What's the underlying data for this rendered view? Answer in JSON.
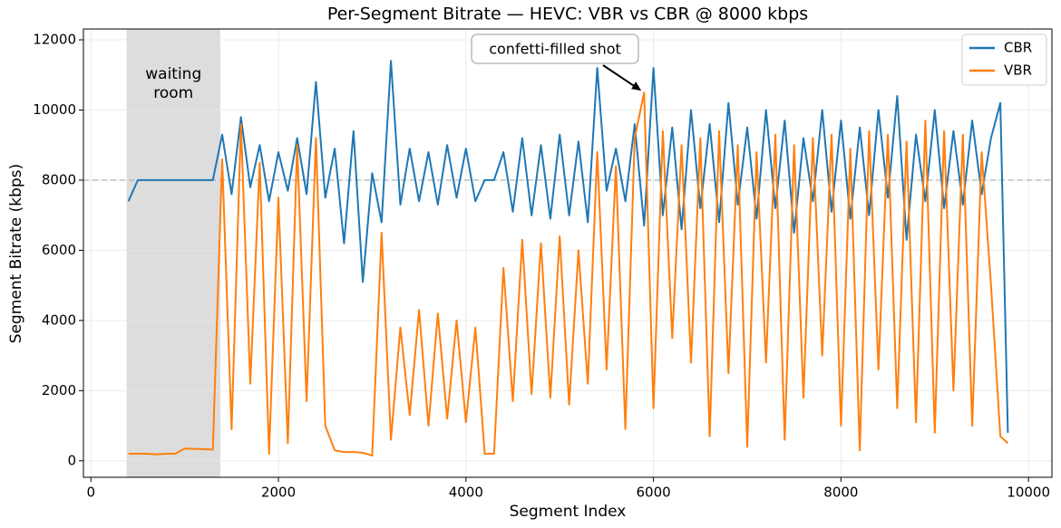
{
  "chart_data": {
    "type": "line",
    "title": "Per-Segment Bitrate — HEVC: VBR vs CBR @ 8000 kbps",
    "xlabel": "Segment Index",
    "ylabel": "Segment Bitrate (kbps)",
    "x": [
      400,
      500,
      600,
      700,
      800,
      900,
      1000,
      1100,
      1200,
      1300,
      1400,
      1500,
      1600,
      1700,
      1800,
      1900,
      2000,
      2100,
      2200,
      2300,
      2400,
      2500,
      2600,
      2700,
      2800,
      2900,
      3000,
      3100,
      3200,
      3300,
      3400,
      3500,
      3600,
      3700,
      3800,
      3900,
      4000,
      4100,
      4200,
      4300,
      4400,
      4500,
      4600,
      4700,
      4800,
      4900,
      5000,
      5100,
      5200,
      5300,
      5400,
      5500,
      5600,
      5700,
      5800,
      5900,
      6000,
      6100,
      6200,
      6300,
      6400,
      6500,
      6600,
      6700,
      6800,
      6900,
      7000,
      7100,
      7200,
      7300,
      7400,
      7500,
      7600,
      7700,
      7800,
      7900,
      8000,
      8100,
      8200,
      8300,
      8400,
      8500,
      8600,
      8700,
      8800,
      8900,
      9000,
      9100,
      9200,
      9300,
      9400,
      9500,
      9600,
      9700,
      9780
    ],
    "series": [
      {
        "name": "CBR",
        "color": "#1f77b4",
        "values": [
          7400,
          8000,
          8000,
          8000,
          8000,
          8000,
          8000,
          8000,
          8000,
          8000,
          9300,
          7600,
          9800,
          7800,
          9000,
          7400,
          8800,
          7700,
          9200,
          7600,
          10800,
          7500,
          8900,
          6200,
          9400,
          5100,
          8200,
          6800,
          11400,
          7300,
          8900,
          7400,
          8800,
          7300,
          9000,
          7500,
          8900,
          7400,
          8000,
          8000,
          8800,
          7100,
          9200,
          7000,
          9000,
          6900,
          9300,
          7000,
          9100,
          6800,
          11200,
          7700,
          8900,
          7400,
          9600,
          6700,
          11200,
          7000,
          9500,
          6600,
          10000,
          7200,
          9600,
          6800,
          10200,
          7300,
          9500,
          6900,
          10000,
          7200,
          9700,
          6500,
          9200,
          7400,
          10000,
          7100,
          9700,
          6900,
          9500,
          7000,
          10000,
          7500,
          10400,
          6300,
          9300,
          7400,
          10000,
          7200,
          9400,
          7300,
          9700,
          7600,
          9200,
          10200,
          800
        ]
      },
      {
        "name": "VBR",
        "color": "#ff7f0e",
        "values": [
          200,
          200,
          200,
          180,
          200,
          200,
          350,
          340,
          330,
          320,
          8600,
          900,
          9600,
          2200,
          8500,
          200,
          7500,
          500,
          9000,
          1700,
          9200,
          1000,
          300,
          250,
          250,
          230,
          150,
          6500,
          600,
          3800,
          1300,
          4300,
          1000,
          4200,
          1200,
          4000,
          1100,
          3800,
          200,
          200,
          5500,
          1700,
          6300,
          1900,
          6200,
          1800,
          6400,
          1600,
          6000,
          2200,
          8800,
          2600,
          8400,
          900,
          9200,
          10500,
          1500,
          9400,
          3500,
          9000,
          2800,
          9200,
          700,
          9400,
          2500,
          9000,
          400,
          8800,
          2800,
          9300,
          600,
          9000,
          1800,
          9200,
          3000,
          9300,
          1000,
          8900,
          300,
          9400,
          2600,
          9300,
          1500,
          9100,
          1100,
          9700,
          800,
          9400,
          2000,
          9300,
          1000,
          8800,
          5000,
          700,
          500
        ]
      }
    ],
    "xlim": [
      -80,
      10250
    ],
    "ylim": [
      -470,
      12310
    ],
    "xticks": [
      0,
      2000,
      4000,
      6000,
      8000,
      10000
    ],
    "yticks": [
      0,
      2000,
      4000,
      6000,
      8000,
      10000,
      12000
    ],
    "grid": true,
    "legend": "upper right",
    "hline": {
      "y": 8000,
      "color": "#aaaaaa"
    },
    "span": {
      "x": [
        380,
        1380
      ],
      "label_lines": [
        "waiting",
        "room"
      ],
      "color": "#dddddd"
    },
    "annotation": {
      "text": "confetti-filled shot",
      "x": 5870,
      "y": 10550
    }
  }
}
